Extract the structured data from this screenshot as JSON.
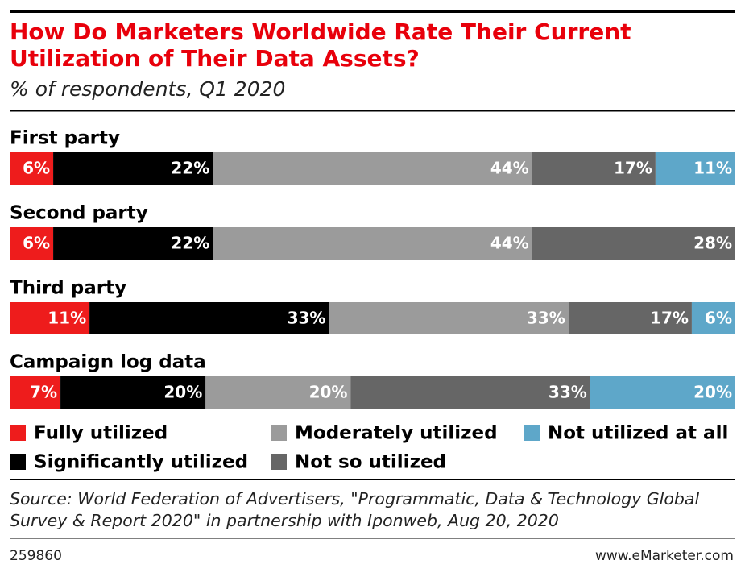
{
  "chart_data": {
    "type": "stacked-bar",
    "title": "How Do Marketers Worldwide Rate Their Current Utilization of Their Data Assets?",
    "subtitle": "% of respondents, Q1 2020",
    "categories": [
      "First party",
      "Second party",
      "Third party",
      "Campaign log data"
    ],
    "xlim": [
      0,
      100
    ],
    "series": [
      {
        "name": "Fully utilized",
        "color": "#ee1c1c",
        "values": [
          6,
          6,
          11,
          7
        ],
        "value_labels": [
          "6%",
          "6%",
          "11%",
          "7%"
        ]
      },
      {
        "name": "Significantly utilized",
        "color": "#000000",
        "values": [
          22,
          22,
          33,
          20
        ],
        "value_labels": [
          "22%",
          "22%",
          "33%",
          "20%"
        ]
      },
      {
        "name": "Moderately utilized",
        "color": "#9b9b9b",
        "values": [
          44,
          44,
          33,
          20
        ],
        "value_labels": [
          "44%",
          "44%",
          "33%",
          "20%"
        ]
      },
      {
        "name": "Not so utilized",
        "color": "#666666",
        "values": [
          17,
          28,
          17,
          33
        ],
        "value_labels": [
          "17%",
          "28%",
          "17%",
          "33%"
        ]
      },
      {
        "name": "Not utilized at all",
        "color": "#5ea7c9",
        "values": [
          11,
          null,
          6,
          20
        ],
        "value_labels": [
          "11%",
          null,
          "6%",
          "20%"
        ]
      }
    ],
    "source": "Source: World Federation of Advertisers, \"Programmatic, Data & Technology Global Survey & Report 2020\" in partnership with Iponweb, Aug 20, 2020",
    "chart_id": "259860",
    "brand": "www.eMarketer.com"
  }
}
